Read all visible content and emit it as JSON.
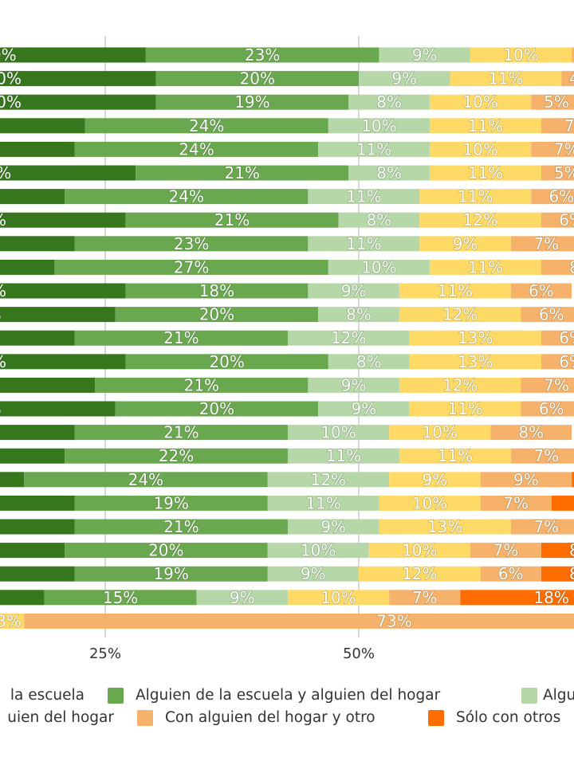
{
  "chart_data": {
    "type": "bar",
    "orientation": "horizontal",
    "stacked": true,
    "percent": true,
    "xlim": [
      0,
      100
    ],
    "x_ticks": [
      "25%",
      "50%"
    ],
    "grid": true,
    "legend_position": "bottom",
    "series": [
      {
        "name": "la escuela",
        "color": "#36761d",
        "values": [
          29,
          30,
          30,
          23,
          22,
          28,
          21,
          27,
          22,
          20,
          27,
          26,
          22,
          27,
          24,
          26,
          22,
          21,
          17,
          22,
          22,
          21,
          22,
          19,
          8
        ]
      },
      {
        "name": "Alguien de la escuela y alguien del hogar",
        "color": "#6aa84f",
        "values": [
          23,
          20,
          19,
          24,
          24,
          21,
          24,
          21,
          23,
          27,
          18,
          20,
          21,
          20,
          21,
          20,
          21,
          22,
          24,
          19,
          21,
          20,
          19,
          15,
          4
        ]
      },
      {
        "name": "Algui",
        "color": "#b6d7a8",
        "values": [
          9,
          9,
          8,
          10,
          11,
          8,
          11,
          8,
          11,
          10,
          9,
          8,
          12,
          8,
          9,
          9,
          10,
          11,
          12,
          11,
          9,
          10,
          9,
          9,
          2
        ]
      },
      {
        "name": "uien del hogar",
        "color": "#ffd966",
        "values": [
          10,
          11,
          10,
          11,
          10,
          11,
          11,
          12,
          9,
          11,
          11,
          12,
          13,
          13,
          12,
          11,
          10,
          11,
          9,
          10,
          13,
          10,
          12,
          10,
          3
        ]
      },
      {
        "name": "Con alguien del hogar y otro",
        "color": "#f6b26b",
        "values": [
          4,
          4,
          5,
          7,
          7,
          5,
          6,
          6,
          7,
          8,
          6,
          6,
          6,
          6,
          7,
          6,
          8,
          7,
          9,
          7,
          7,
          7,
          6,
          7,
          73
        ]
      },
      {
        "name": "Sólo con otros",
        "color": "#ff6d01",
        "values": [
          null,
          null,
          null,
          null,
          null,
          null,
          null,
          null,
          null,
          null,
          null,
          null,
          null,
          null,
          null,
          null,
          null,
          null,
          10,
          8,
          null,
          8,
          8,
          18,
          null
        ]
      }
    ]
  },
  "legend": {
    "row1": [
      "la escuela",
      "Alguien de la escuela y alguien del hogar",
      "Algui"
    ],
    "row2": [
      "uien del hogar",
      "Con alguien del hogar y otro",
      "Sólo con otros"
    ]
  }
}
